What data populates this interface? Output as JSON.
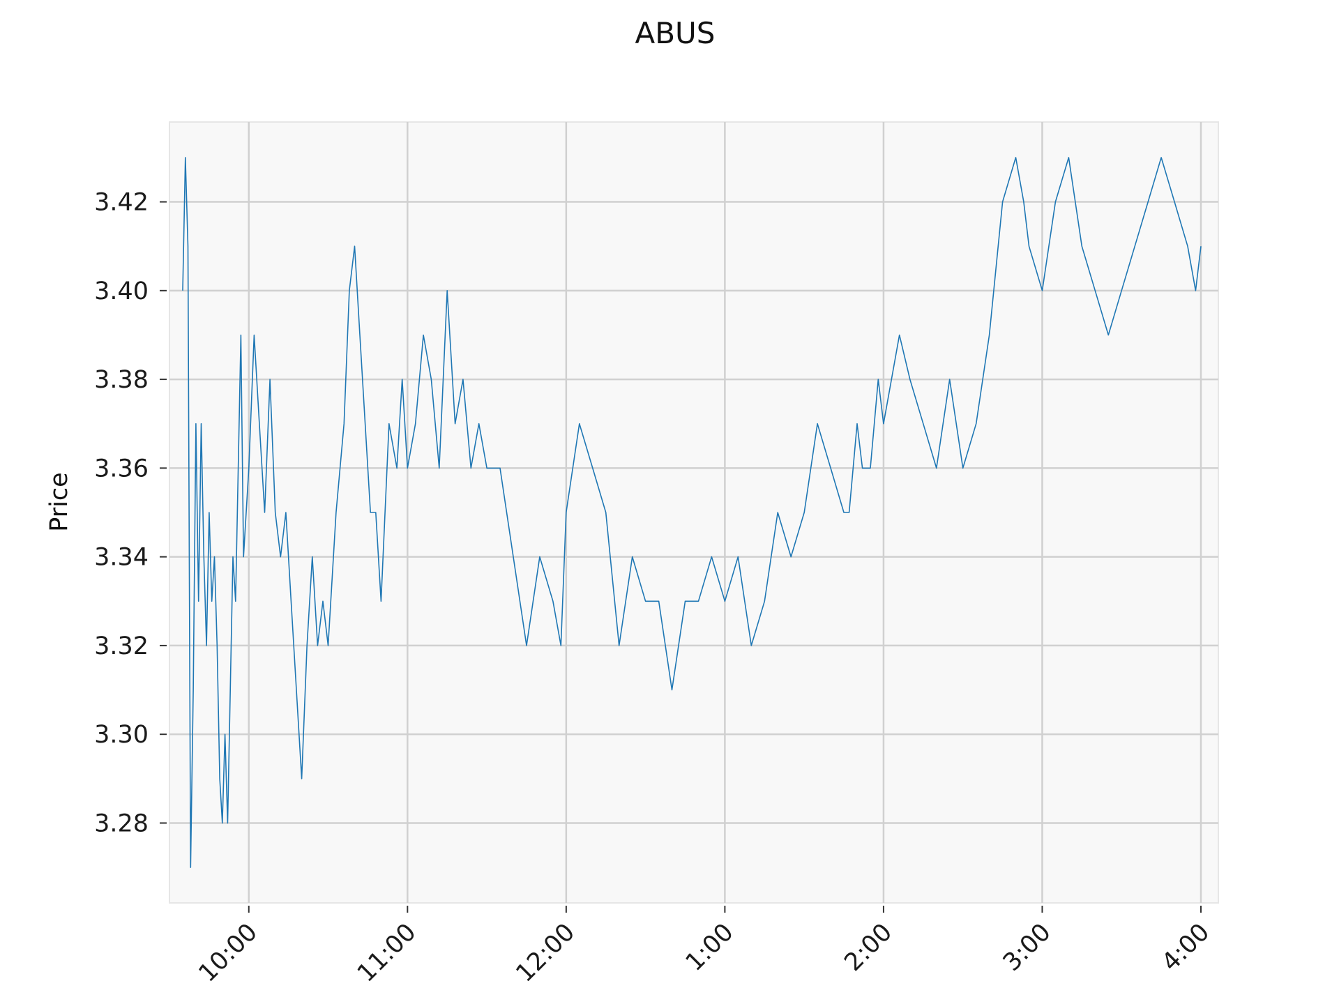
{
  "colors": {
    "line": "#1f77b4",
    "plot_background": "#f8f8f8",
    "grid": "#d0d0d0",
    "frame": "#e6e6e6"
  },
  "chart_data": {
    "type": "line",
    "title": "ABUS",
    "xlabel": "",
    "ylabel": "Price",
    "grid": true,
    "x_unit": "time of day",
    "xlim": [
      "9:30",
      "4:00"
    ],
    "ylim": [
      3.262,
      3.438
    ],
    "x_ticks": [
      "10:00",
      "11:00",
      "12:00",
      "1:00",
      "2:00",
      "3:00",
      "4:00"
    ],
    "y_ticks": [
      "3.28",
      "3.30",
      "3.32",
      "3.34",
      "3.36",
      "3.38",
      "3.40",
      "3.42"
    ],
    "series": [
      {
        "x": [
          "9:35",
          "9:36",
          "9:37",
          "9:38",
          "9:39",
          "9:40",
          "9:41",
          "9:42",
          "9:43",
          "9:44",
          "9:45",
          "9:46",
          "9:47",
          "9:48",
          "9:49",
          "9:50",
          "9:51",
          "9:52",
          "9:53",
          "9:54",
          "9:55",
          "9:56",
          "9:57",
          "9:58",
          "9:59",
          "10:00",
          "10:02",
          "10:04",
          "10:06",
          "10:08",
          "10:10",
          "10:12",
          "10:14",
          "10:16",
          "10:18",
          "10:20",
          "10:22",
          "10:24",
          "10:26",
          "10:28",
          "10:30",
          "10:33",
          "10:36",
          "10:38",
          "10:40",
          "10:42",
          "10:44",
          "10:46",
          "10:48",
          "10:50",
          "10:53",
          "10:56",
          "10:58",
          "11:00",
          "11:03",
          "11:06",
          "11:09",
          "11:12",
          "11:15",
          "11:18",
          "11:21",
          "11:24",
          "11:27",
          "11:30",
          "11:35",
          "11:40",
          "11:45",
          "11:50",
          "11:55",
          "11:58",
          "12:00",
          "12:05",
          "12:10",
          "12:15",
          "12:20",
          "12:25",
          "12:30",
          "12:35",
          "12:40",
          "12:45",
          "12:50",
          "12:55",
          "1:00",
          "1:05",
          "1:10",
          "1:15",
          "1:20",
          "1:25",
          "1:30",
          "1:35",
          "1:40",
          "1:45",
          "1:47",
          "1:50",
          "1:52",
          "1:55",
          "1:58",
          "2:00",
          "2:03",
          "2:06",
          "2:10",
          "2:15",
          "2:20",
          "2:25",
          "2:30",
          "2:35",
          "2:40",
          "2:45",
          "2:50",
          "2:53",
          "2:55",
          "3:00",
          "3:05",
          "3:10",
          "3:15",
          "3:20",
          "3:25",
          "3:30",
          "3:35",
          "3:40",
          "3:45",
          "3:50",
          "3:55",
          "3:58",
          "4:00"
        ],
        "y": [
          3.4,
          3.43,
          3.41,
          3.27,
          3.31,
          3.37,
          3.33,
          3.37,
          3.34,
          3.32,
          3.35,
          3.33,
          3.34,
          3.32,
          3.29,
          3.28,
          3.3,
          3.28,
          3.31,
          3.34,
          3.33,
          3.36,
          3.39,
          3.34,
          3.35,
          3.36,
          3.39,
          3.37,
          3.35,
          3.38,
          3.35,
          3.34,
          3.35,
          3.33,
          3.31,
          3.29,
          3.32,
          3.34,
          3.32,
          3.33,
          3.32,
          3.35,
          3.37,
          3.4,
          3.41,
          3.39,
          3.37,
          3.35,
          3.35,
          3.33,
          3.37,
          3.36,
          3.38,
          3.36,
          3.37,
          3.39,
          3.38,
          3.36,
          3.4,
          3.37,
          3.38,
          3.36,
          3.37,
          3.36,
          3.36,
          3.34,
          3.32,
          3.34,
          3.33,
          3.32,
          3.35,
          3.37,
          3.36,
          3.35,
          3.32,
          3.34,
          3.33,
          3.33,
          3.31,
          3.33,
          3.33,
          3.34,
          3.33,
          3.34,
          3.32,
          3.33,
          3.35,
          3.34,
          3.35,
          3.37,
          3.36,
          3.35,
          3.35,
          3.37,
          3.36,
          3.36,
          3.38,
          3.37,
          3.38,
          3.39,
          3.38,
          3.37,
          3.36,
          3.38,
          3.36,
          3.37,
          3.39,
          3.42,
          3.43,
          3.42,
          3.41,
          3.4,
          3.42,
          3.43,
          3.41,
          3.4,
          3.39,
          3.4,
          3.41,
          3.42,
          3.43,
          3.42,
          3.41,
          3.4,
          3.41
        ]
      }
    ]
  }
}
